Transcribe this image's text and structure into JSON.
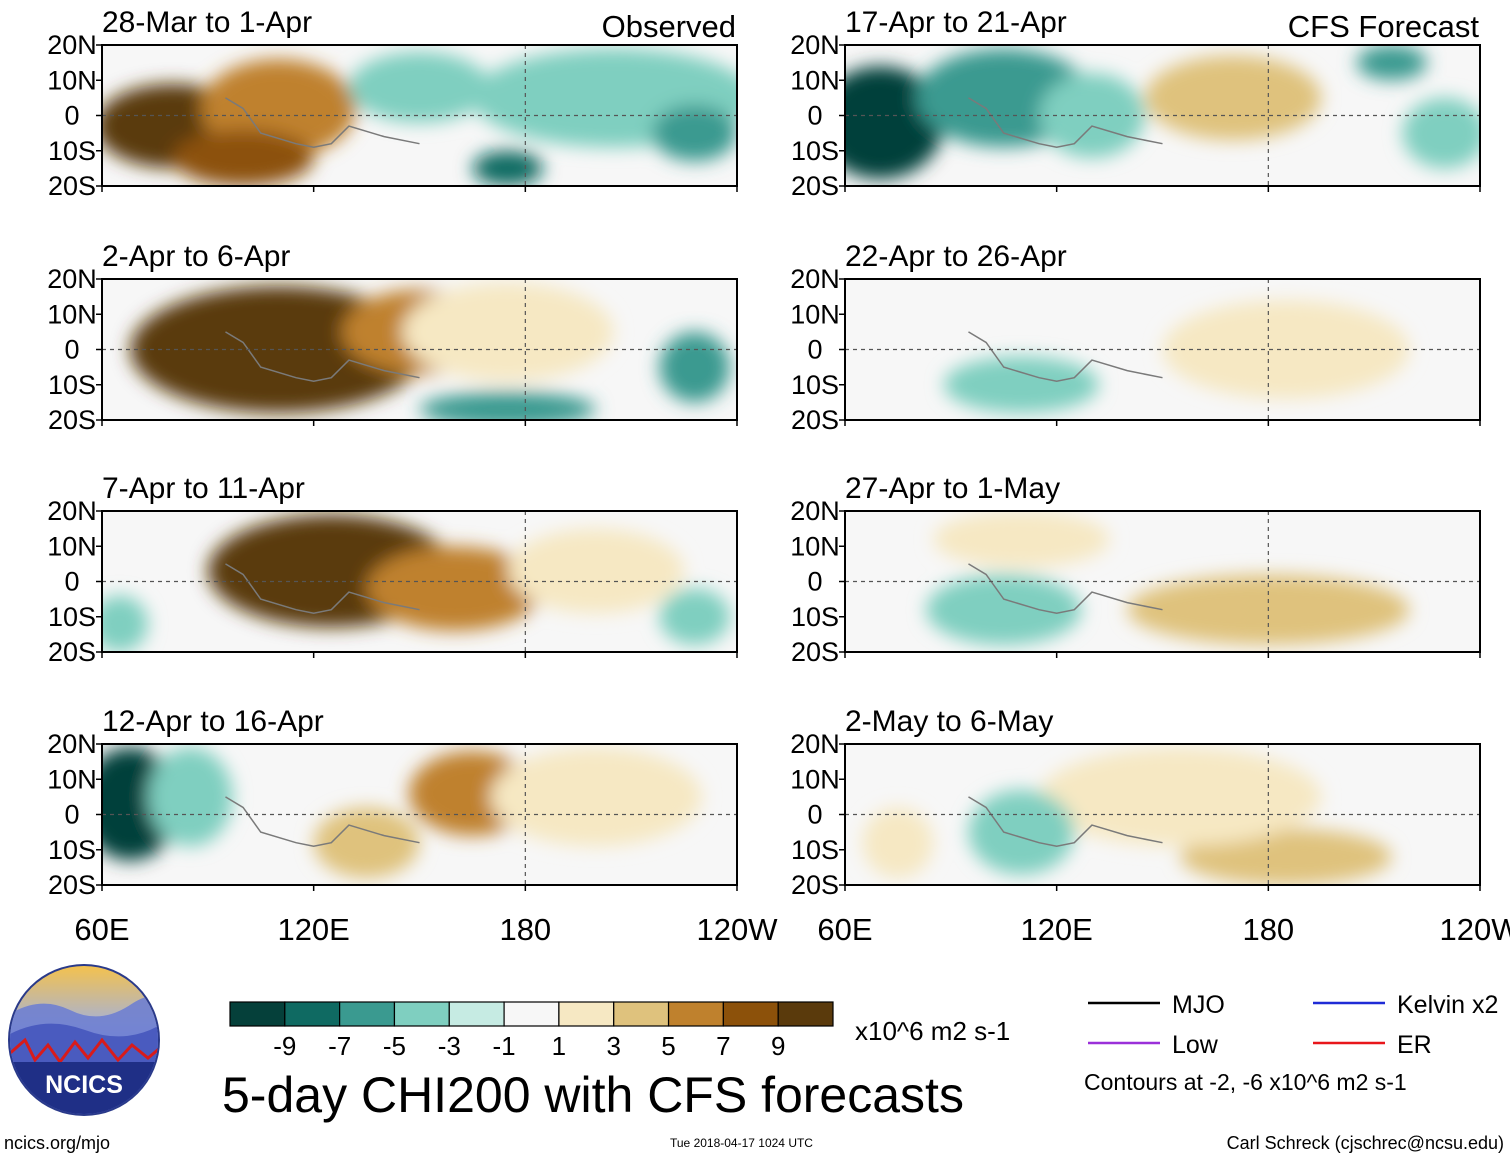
{
  "chart_data": {
    "type": "heatmap",
    "title": "5-day CHI200 with CFS forecasts",
    "units": "x10^6 m2 s-1",
    "x_ticks": [
      "60E",
      "120E",
      "180",
      "120W"
    ],
    "x_range_deg_east": [
      60,
      240
    ],
    "y_ticks": [
      "20N",
      "10N",
      "0",
      "10S",
      "20S"
    ],
    "y_range_deg": [
      -20,
      20
    ],
    "colorbar": {
      "labels": [
        "-9",
        "-7",
        "-5",
        "-3",
        "-1",
        "1",
        "3",
        "5",
        "7",
        "9"
      ],
      "colors": [
        "#05403a",
        "#0f6a62",
        "#3a9a90",
        "#7fcfc0",
        "#c6ebe3",
        "#f7f7f7",
        "#f6e8c3",
        "#dfc27d",
        "#bf812d",
        "#8c510a",
        "#5a3a0c"
      ]
    },
    "panel_groups": [
      {
        "label": "Observed",
        "column": "left"
      },
      {
        "label": "CFS Forecast",
        "column": "right"
      }
    ],
    "panels": [
      {
        "period": "28-Mar to 1-Apr",
        "source": "Observed",
        "blobs": [
          [
            80,
            -3,
            22,
            12,
            9
          ],
          [
            110,
            2,
            22,
            14,
            5
          ],
          [
            100,
            -12,
            20,
            8,
            7
          ],
          [
            150,
            8,
            20,
            10,
            -2
          ],
          [
            205,
            5,
            40,
            14,
            -3
          ],
          [
            175,
            -15,
            10,
            5,
            -7
          ],
          [
            228,
            -5,
            12,
            8,
            -5
          ]
        ]
      },
      {
        "period": "2-Apr to 6-Apr",
        "source": "Observed",
        "blobs": [
          [
            110,
            0,
            42,
            18,
            10
          ],
          [
            150,
            5,
            22,
            12,
            5
          ],
          [
            175,
            5,
            30,
            14,
            2
          ],
          [
            228,
            -5,
            10,
            10,
            -4
          ],
          [
            175,
            -17,
            25,
            5,
            -5
          ]
        ]
      },
      {
        "period": "7-Apr to 11-Apr",
        "source": "Observed",
        "blobs": [
          [
            125,
            3,
            35,
            16,
            10
          ],
          [
            160,
            -2,
            25,
            12,
            5
          ],
          [
            200,
            3,
            25,
            12,
            2
          ],
          [
            65,
            -12,
            8,
            8,
            -3
          ],
          [
            228,
            -10,
            10,
            8,
            -2
          ]
        ]
      },
      {
        "period": "12-Apr to 16-Apr",
        "source": "Observed",
        "blobs": [
          [
            68,
            3,
            14,
            16,
            -10
          ],
          [
            85,
            5,
            12,
            14,
            -3
          ],
          [
            165,
            6,
            18,
            12,
            5
          ],
          [
            200,
            5,
            30,
            14,
            2
          ],
          [
            135,
            -8,
            15,
            10,
            3
          ]
        ]
      },
      {
        "period": "17-Apr to 21-Apr",
        "source": "CFS Forecast",
        "blobs": [
          [
            70,
            -2,
            18,
            16,
            -10
          ],
          [
            105,
            5,
            25,
            14,
            -4
          ],
          [
            130,
            0,
            15,
            12,
            -3
          ],
          [
            170,
            5,
            25,
            12,
            3
          ],
          [
            230,
            -5,
            12,
            10,
            -3
          ],
          [
            215,
            15,
            10,
            5,
            -5
          ]
        ]
      },
      {
        "period": "22-Apr to 26-Apr",
        "source": "CFS Forecast",
        "blobs": [
          [
            110,
            -10,
            22,
            8,
            -3
          ],
          [
            185,
            0,
            35,
            14,
            1
          ]
        ]
      },
      {
        "period": "27-Apr to 1-May",
        "source": "CFS Forecast",
        "blobs": [
          [
            105,
            -8,
            22,
            10,
            -2
          ],
          [
            180,
            -8,
            40,
            10,
            3
          ],
          [
            110,
            12,
            25,
            8,
            1
          ]
        ]
      },
      {
        "period": "2-May to 6-May",
        "source": "CFS Forecast",
        "blobs": [
          [
            75,
            -8,
            10,
            10,
            2
          ],
          [
            185,
            -12,
            30,
            8,
            3
          ],
          [
            155,
            5,
            40,
            14,
            1
          ],
          [
            110,
            -5,
            15,
            12,
            -2
          ]
        ]
      }
    ],
    "contours": {
      "levels": "Contours at -2, -6 x10^6 m2 s-1",
      "legend": [
        {
          "name": "MJO",
          "color": "#000000"
        },
        {
          "name": "Kelvin x2",
          "color": "#1f2bd6"
        },
        {
          "name": "Low",
          "color": "#9b30d9"
        },
        {
          "name": "ER",
          "color": "#e8161b"
        }
      ]
    }
  },
  "footer": {
    "logo_text": "NCICS",
    "url": "ncics.org/mjo",
    "timestamp": "Tue 2018-04-17 1024 UTC",
    "credit": "Carl Schreck (cjschrec@ncsu.edu)"
  }
}
